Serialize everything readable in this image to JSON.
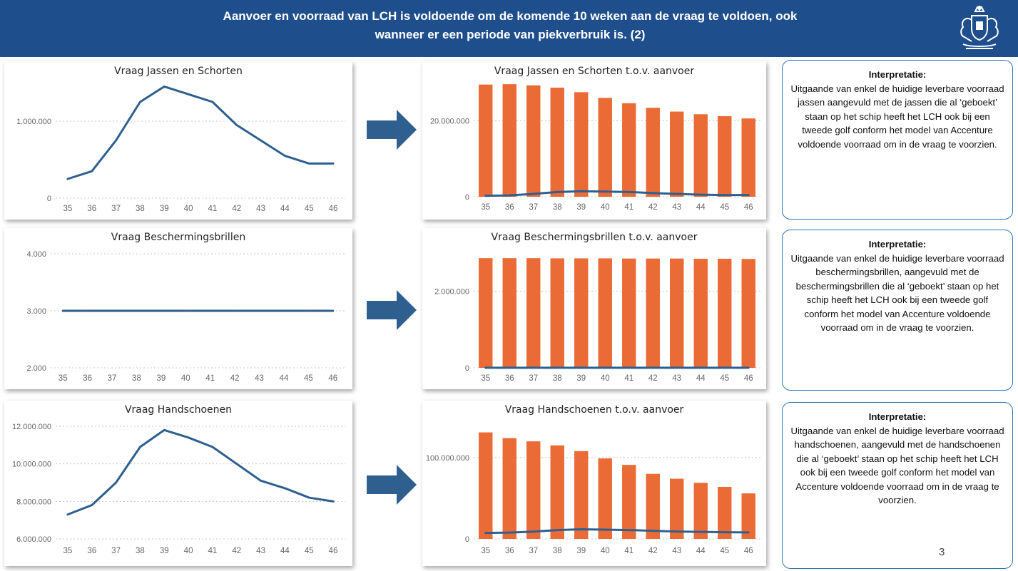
{
  "header": {
    "title": "Aanvoer en voorraad van LCH is voldoende om de komende 10 weken aan de vraag te voldoen, ook wanneer er een periode van piekverbruik is. (2)"
  },
  "colors": {
    "header_bg": "#1f4e8c",
    "line": "#2e5f8f",
    "bar": "#ea6b35",
    "arrow": "#2e5f8f",
    "panel_border": "#2e75b6"
  },
  "icons": {
    "logo": "royal-coat-of-arms-icon",
    "arrow": "right-arrow-icon"
  },
  "interpretations": [
    {
      "heading": "Interpretatie:",
      "body": "Uitgaande van enkel de huidige leverbare voorraad jassen aangevuld met de jassen die al ‘geboekt’ staan op het schip heeft het LCH ook bij een tweede golf conform het model van Accenture voldoende voorraad om in de vraag te voorzien."
    },
    {
      "heading": "Interpretatie:",
      "body": "Uitgaande van enkel de huidige leverbare voorraad beschermingsbrillen, aangevuld met de beschermingsbrillen die al ‘geboekt’ staan op het schip heeft het LCH ook bij een tweede golf conform het model van Accenture voldoende voorraad om in de vraag te voorzien."
    },
    {
      "heading": "Interpretatie:",
      "body": "Uitgaande van enkel de huidige leverbare voorraad handschoenen, aangevuld met de handschoenen die al ‘geboekt’ staan op het schip heeft het LCH ook bij een tweede golf conform het model van Accenture voldoende voorraad om in de vraag te voorzien."
    }
  ],
  "page_number": "3",
  "chart_data": [
    {
      "type": "line",
      "title": "Vraag Jassen en Schorten",
      "x": [
        "35",
        "36",
        "37",
        "38",
        "39",
        "40",
        "41",
        "42",
        "43",
        "44",
        "45",
        "46"
      ],
      "series": [
        {
          "values": [
            250000,
            350000,
            750000,
            1250000,
            1450000,
            1350000,
            1250000,
            950000,
            750000,
            550000,
            450000,
            450000
          ]
        }
      ],
      "ylim": [
        0,
        1500000
      ],
      "yticks": [
        0,
        1000000
      ],
      "ytick_labels": [
        "0",
        "1.000.000"
      ],
      "grid": true
    },
    {
      "type": "bar",
      "title": "Vraag Jassen en Schorten t.o.v. aanvoer",
      "x": [
        "35",
        "36",
        "37",
        "38",
        "39",
        "40",
        "41",
        "42",
        "43",
        "44",
        "45",
        "46"
      ],
      "series": [
        {
          "kind": "bar",
          "values": [
            29500000,
            29600000,
            29300000,
            28700000,
            27500000,
            26000000,
            24600000,
            23400000,
            22400000,
            21700000,
            21200000,
            20600000
          ]
        },
        {
          "kind": "line",
          "values": [
            250000,
            350000,
            750000,
            1250000,
            1450000,
            1350000,
            1250000,
            950000,
            750000,
            550000,
            450000,
            450000
          ]
        }
      ],
      "ylim": [
        0,
        30000000
      ],
      "yticks": [
        0,
        20000000
      ],
      "ytick_labels": [
        "0",
        "20.000.000"
      ],
      "grid": true
    },
    {
      "type": "line",
      "title": "Vraag Beschermingsbrillen",
      "x": [
        "35",
        "36",
        "37",
        "38",
        "39",
        "40",
        "41",
        "42",
        "43",
        "44",
        "45",
        "46"
      ],
      "series": [
        {
          "values": [
            3000,
            3000,
            3000,
            3000,
            3000,
            3000,
            3000,
            3000,
            3000,
            3000,
            3000,
            3000
          ]
        }
      ],
      "ylim": [
        2000,
        4000
      ],
      "yticks": [
        2000,
        3000,
        4000
      ],
      "ytick_labels": [
        "2.000",
        "3.000",
        "4.000"
      ],
      "grid": true
    },
    {
      "type": "bar",
      "title": "Vraag Beschermingsbrillen t.o.v. aanvoer",
      "x": [
        "35",
        "36",
        "37",
        "38",
        "39",
        "40",
        "41",
        "42",
        "43",
        "44",
        "45",
        "46"
      ],
      "series": [
        {
          "kind": "bar",
          "values": [
            2860000,
            2860000,
            2860000,
            2855000,
            2855000,
            2855000,
            2850000,
            2850000,
            2850000,
            2845000,
            2845000,
            2840000
          ]
        },
        {
          "kind": "line",
          "values": [
            3000,
            3000,
            3000,
            3000,
            3000,
            3000,
            3000,
            3000,
            3000,
            3000,
            3000,
            3000
          ]
        }
      ],
      "ylim": [
        0,
        2900000
      ],
      "yticks": [
        0,
        2000000
      ],
      "ytick_labels": [
        "0",
        "2.000.000"
      ],
      "grid": true
    },
    {
      "type": "line",
      "title": "Vraag Handschoenen",
      "x": [
        "35",
        "36",
        "37",
        "38",
        "39",
        "40",
        "41",
        "42",
        "43",
        "44",
        "45",
        "46"
      ],
      "series": [
        {
          "values": [
            7300000,
            7800000,
            9000000,
            10900000,
            11800000,
            11400000,
            10900000,
            10000000,
            9100000,
            8700000,
            8200000,
            8000000
          ]
        }
      ],
      "ylim": [
        6000000,
        12000000
      ],
      "yticks": [
        6000000,
        8000000,
        10000000,
        12000000
      ],
      "ytick_labels": [
        "6.000.000",
        "8.000.000",
        "10.000.000",
        "12.000.000"
      ],
      "grid": true
    },
    {
      "type": "bar",
      "title": "Vraag Handschoenen t.o.v. aanvoer",
      "x": [
        "35",
        "36",
        "37",
        "38",
        "39",
        "40",
        "41",
        "42",
        "43",
        "44",
        "45",
        "46"
      ],
      "series": [
        {
          "kind": "bar",
          "values": [
            131000000,
            124000000,
            120000000,
            115000000,
            108000000,
            99000000,
            91000000,
            80000000,
            74000000,
            69000000,
            64000000,
            56000000
          ]
        },
        {
          "kind": "line",
          "values": [
            7300000,
            7800000,
            9000000,
            10900000,
            11800000,
            11400000,
            10900000,
            10000000,
            9100000,
            8700000,
            8200000,
            8000000
          ]
        }
      ],
      "ylim": [
        0,
        135000000
      ],
      "yticks": [
        0,
        100000000
      ],
      "ytick_labels": [
        "0",
        "100.000.000"
      ],
      "grid": true
    }
  ]
}
